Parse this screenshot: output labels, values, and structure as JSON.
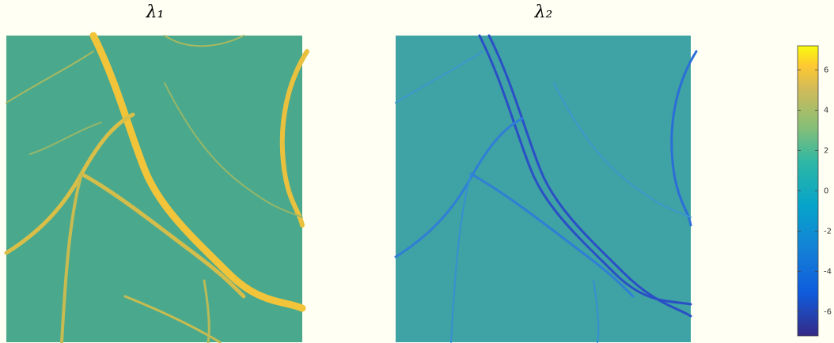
{
  "chart_data": [
    {
      "type": "image",
      "title": "λ₁"
    },
    {
      "type": "image",
      "title": "λ₂"
    },
    {
      "type": "colorbar",
      "clim": [
        -7.2,
        7.2
      ],
      "ticks": [
        6,
        4,
        2,
        0,
        -2,
        -4,
        -6
      ]
    }
  ]
}
